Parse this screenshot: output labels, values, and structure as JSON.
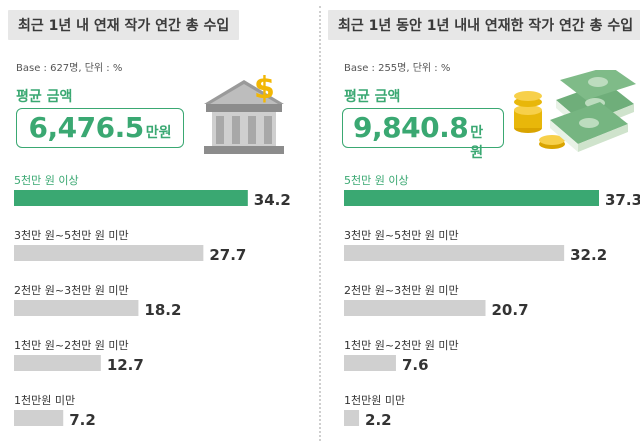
{
  "panels": [
    {
      "title": "최근 1년 내 연재 작가 연간 총 수입",
      "base": "Base : 627명, 단위 : %",
      "avg_label": "평균 금액",
      "avg_value": "6,476.5",
      "avg_unit": "만원",
      "illustration": "bank-building-dollar-icon"
    },
    {
      "title": "최근 1년 동안 1년 내내 연재한 작가 연간 총 수입",
      "base": "Base : 255명, 단위 : %",
      "avg_label": "평균 금액",
      "avg_value": "9,840.8",
      "avg_unit": "만원",
      "illustration": "money-stack-coins-icon"
    }
  ],
  "colors": {
    "accent": "#3aa872",
    "bar_gray": "#d0d0d0",
    "title_bg": "#e7e7e7"
  },
  "chart_data": [
    {
      "type": "bar",
      "orientation": "horizontal",
      "categories": [
        "5천만 원 이상",
        "3천만 원~5천만 원 미만",
        "2천만 원~3천만 원 미만",
        "1천만 원~2천만 원 미만",
        "1천만원 미만"
      ],
      "values": [
        34.2,
        27.7,
        18.2,
        12.7,
        7.2
      ],
      "highlight_index": 0,
      "xlim": [
        0,
        37.3
      ]
    },
    {
      "type": "bar",
      "orientation": "horizontal",
      "categories": [
        "5천만 원 이상",
        "3천만 원~5천만 원 미만",
        "2천만 원~3천만 원 미만",
        "1천만 원~2천만 원 미만",
        "1천만원 미만"
      ],
      "values": [
        37.3,
        32.2,
        20.7,
        7.6,
        2.2
      ],
      "highlight_index": 0,
      "xlim": [
        0,
        37.3
      ]
    }
  ]
}
